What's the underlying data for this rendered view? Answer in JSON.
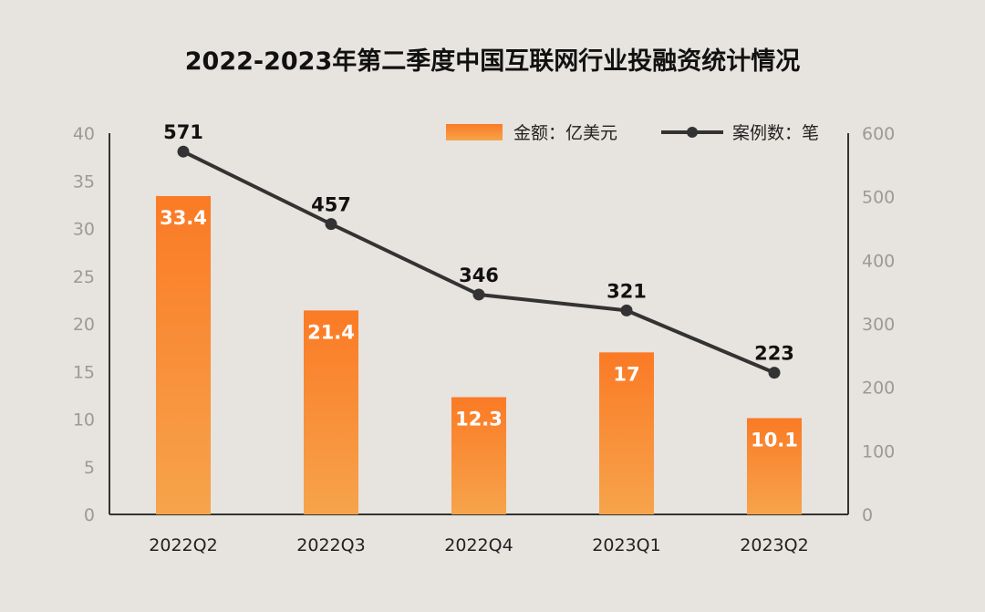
{
  "chart_data": {
    "type": "bar",
    "title": "2022-2023年第二季度中国互联网行业投融资统计情况",
    "categories": [
      "2022Q2",
      "2022Q3",
      "2022Q4",
      "2023Q1",
      "2023Q2"
    ],
    "series": [
      {
        "name": "金额：亿美元",
        "type": "bar",
        "axis": "left",
        "values": [
          33.4,
          21.4,
          12.3,
          17,
          10.1
        ]
      },
      {
        "name": "案例数：笔",
        "type": "line",
        "axis": "right",
        "values": [
          571,
          457,
          346,
          321,
          223
        ]
      }
    ],
    "y_left": {
      "range": [
        0,
        40
      ],
      "ticks": [
        "0",
        "5",
        "10",
        "15",
        "20",
        "25",
        "30",
        "35",
        "40"
      ]
    },
    "y_right": {
      "range": [
        0,
        600
      ],
      "ticks": [
        "0",
        "100",
        "200",
        "300",
        "400",
        "500",
        "600"
      ]
    },
    "legend_position": "top-right",
    "grid": false,
    "colors": {
      "bar_top": "#fb7a25",
      "bar_bottom": "#f6a44c",
      "line": "#333333",
      "axis": "#333333"
    }
  }
}
